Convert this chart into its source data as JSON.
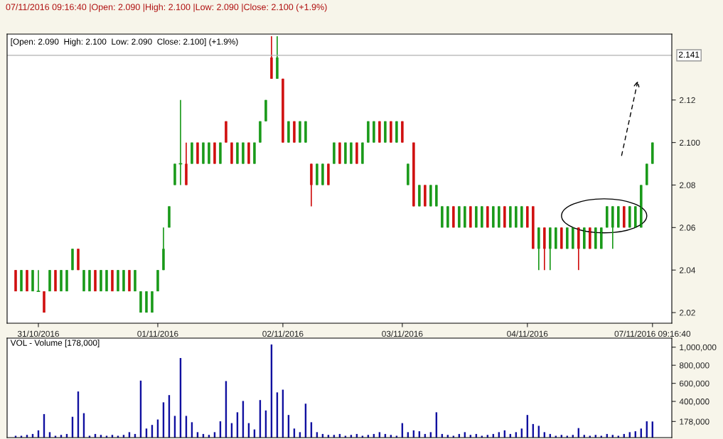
{
  "chart_data": [
    {
      "type": "candlestick",
      "title": "07/11/2016 09:16:40 |Open: 2.090 |High: 2.100 |Low: 2.090 |Close: 2.100 (+1.9%)",
      "subtitle": "[Open: 2.090  High: 2.100  Low: 2.090  Close: 2.100] (+1.9%)",
      "categories": [
        null,
        null,
        null,
        null,
        "31/10/2016",
        null,
        null,
        null,
        null,
        null,
        null,
        null,
        null,
        null,
        null,
        null,
        null,
        null,
        null,
        null,
        null,
        null,
        null,
        null,
        null,
        "01/11/2016",
        null,
        null,
        null,
        null,
        null,
        null,
        null,
        null,
        null,
        null,
        null,
        null,
        null,
        null,
        null,
        null,
        null,
        null,
        null,
        null,
        null,
        "02/11/2016",
        null,
        null,
        null,
        null,
        null,
        null,
        null,
        null,
        null,
        null,
        null,
        null,
        null,
        null,
        null,
        null,
        null,
        null,
        null,
        null,
        "03/11/2016",
        null,
        null,
        null,
        null,
        null,
        null,
        null,
        null,
        null,
        null,
        null,
        null,
        null,
        null,
        null,
        null,
        null,
        null,
        null,
        null,
        null,
        "04/11/2016",
        null,
        null,
        null,
        null,
        null,
        null,
        null,
        null,
        null,
        null,
        null,
        null,
        null,
        null,
        null,
        null,
        null,
        null,
        null,
        null,
        null,
        "07/11/2016 09:16:40"
      ],
      "ohlc": [
        [
          2.04,
          2.04,
          2.03,
          2.03
        ],
        [
          2.03,
          2.04,
          2.03,
          2.04
        ],
        [
          2.04,
          2.04,
          2.03,
          2.03
        ],
        [
          2.03,
          2.04,
          2.03,
          2.04
        ],
        [
          2.03,
          2.04,
          2.03,
          2.03
        ],
        [
          2.03,
          2.03,
          2.02,
          2.02
        ],
        [
          2.03,
          2.04,
          2.03,
          2.04
        ],
        [
          2.04,
          2.04,
          2.03,
          2.03
        ],
        [
          2.03,
          2.04,
          2.03,
          2.04
        ],
        [
          2.03,
          2.04,
          2.03,
          2.04
        ],
        [
          2.04,
          2.05,
          2.04,
          2.05
        ],
        [
          2.05,
          2.05,
          2.04,
          2.04
        ],
        [
          2.03,
          2.04,
          2.03,
          2.04
        ],
        [
          2.03,
          2.04,
          2.03,
          2.04
        ],
        [
          2.04,
          2.04,
          2.03,
          2.03
        ],
        [
          2.03,
          2.04,
          2.03,
          2.04
        ],
        [
          2.03,
          2.04,
          2.03,
          2.04
        ],
        [
          2.04,
          2.04,
          2.03,
          2.03
        ],
        [
          2.03,
          2.04,
          2.03,
          2.04
        ],
        [
          2.03,
          2.04,
          2.03,
          2.04
        ],
        [
          2.04,
          2.04,
          2.03,
          2.03
        ],
        [
          2.03,
          2.04,
          2.03,
          2.04
        ],
        [
          2.02,
          2.03,
          2.02,
          2.03
        ],
        [
          2.02,
          2.03,
          2.02,
          2.03
        ],
        [
          2.02,
          2.03,
          2.02,
          2.03
        ],
        [
          2.03,
          2.04,
          2.03,
          2.04
        ],
        [
          2.04,
          2.06,
          2.04,
          2.05
        ],
        [
          2.06,
          2.07,
          2.06,
          2.07
        ],
        [
          2.08,
          2.09,
          2.08,
          2.09
        ],
        [
          2.09,
          2.12,
          2.08,
          2.09
        ],
        [
          2.09,
          2.1,
          2.08,
          2.08
        ],
        [
          2.09,
          2.1,
          2.09,
          2.1
        ],
        [
          2.1,
          2.1,
          2.09,
          2.09
        ],
        [
          2.09,
          2.1,
          2.09,
          2.1
        ],
        [
          2.09,
          2.1,
          2.09,
          2.1
        ],
        [
          2.1,
          2.1,
          2.09,
          2.09
        ],
        [
          2.09,
          2.1,
          2.09,
          2.1
        ],
        [
          2.11,
          2.11,
          2.1,
          2.1
        ],
        [
          2.1,
          2.1,
          2.09,
          2.09
        ],
        [
          2.09,
          2.1,
          2.09,
          2.1
        ],
        [
          2.09,
          2.1,
          2.09,
          2.1
        ],
        [
          2.1,
          2.1,
          2.09,
          2.09
        ],
        [
          2.09,
          2.1,
          2.09,
          2.1
        ],
        [
          2.1,
          2.11,
          2.1,
          2.11
        ],
        [
          2.11,
          2.12,
          2.11,
          2.12
        ],
        [
          2.14,
          2.15,
          2.13,
          2.13
        ],
        [
          2.13,
          2.15,
          2.13,
          2.14
        ],
        [
          2.13,
          2.13,
          2.1,
          2.1
        ],
        [
          2.1,
          2.11,
          2.1,
          2.11
        ],
        [
          2.11,
          2.11,
          2.1,
          2.1
        ],
        [
          2.1,
          2.11,
          2.1,
          2.11
        ],
        [
          2.1,
          2.11,
          2.1,
          2.11
        ],
        [
          2.09,
          2.09,
          2.07,
          2.08
        ],
        [
          2.08,
          2.09,
          2.08,
          2.09
        ],
        [
          2.08,
          2.09,
          2.08,
          2.09
        ],
        [
          2.09,
          2.09,
          2.08,
          2.08
        ],
        [
          2.09,
          2.1,
          2.09,
          2.1
        ],
        [
          2.1,
          2.1,
          2.09,
          2.09
        ],
        [
          2.09,
          2.1,
          2.09,
          2.1
        ],
        [
          2.09,
          2.1,
          2.09,
          2.1
        ],
        [
          2.1,
          2.1,
          2.09,
          2.09
        ],
        [
          2.09,
          2.1,
          2.09,
          2.1
        ],
        [
          2.1,
          2.11,
          2.1,
          2.11
        ],
        [
          2.1,
          2.11,
          2.1,
          2.11
        ],
        [
          2.11,
          2.11,
          2.1,
          2.1
        ],
        [
          2.1,
          2.11,
          2.1,
          2.11
        ],
        [
          2.11,
          2.11,
          2.1,
          2.1
        ],
        [
          2.1,
          2.11,
          2.1,
          2.11
        ],
        [
          2.11,
          2.11,
          2.1,
          2.1
        ],
        [
          2.08,
          2.09,
          2.08,
          2.09
        ],
        [
          2.1,
          2.1,
          2.07,
          2.07
        ],
        [
          2.07,
          2.08,
          2.07,
          2.08
        ],
        [
          2.08,
          2.08,
          2.07,
          2.07
        ],
        [
          2.07,
          2.08,
          2.07,
          2.08
        ],
        [
          2.07,
          2.08,
          2.07,
          2.08
        ],
        [
          2.06,
          2.07,
          2.06,
          2.07
        ],
        [
          2.06,
          2.07,
          2.06,
          2.07
        ],
        [
          2.07,
          2.07,
          2.06,
          2.06
        ],
        [
          2.06,
          2.07,
          2.06,
          2.07
        ],
        [
          2.06,
          2.07,
          2.06,
          2.07
        ],
        [
          2.07,
          2.07,
          2.06,
          2.06
        ],
        [
          2.06,
          2.07,
          2.06,
          2.07
        ],
        [
          2.06,
          2.07,
          2.06,
          2.07
        ],
        [
          2.07,
          2.07,
          2.06,
          2.06
        ],
        [
          2.06,
          2.07,
          2.06,
          2.07
        ],
        [
          2.06,
          2.07,
          2.06,
          2.07
        ],
        [
          2.07,
          2.07,
          2.06,
          2.06
        ],
        [
          2.06,
          2.07,
          2.06,
          2.07
        ],
        [
          2.06,
          2.07,
          2.06,
          2.07
        ],
        [
          2.06,
          2.07,
          2.06,
          2.07
        ],
        [
          2.07,
          2.07,
          2.06,
          2.06
        ],
        [
          2.07,
          2.07,
          2.05,
          2.05
        ],
        [
          2.05,
          2.06,
          2.04,
          2.06
        ],
        [
          2.06,
          2.06,
          2.04,
          2.05
        ],
        [
          2.05,
          2.06,
          2.04,
          2.06
        ],
        [
          2.05,
          2.06,
          2.05,
          2.06
        ],
        [
          2.06,
          2.06,
          2.05,
          2.05
        ],
        [
          2.05,
          2.06,
          2.05,
          2.06
        ],
        [
          2.05,
          2.06,
          2.05,
          2.06
        ],
        [
          2.06,
          2.06,
          2.04,
          2.05
        ],
        [
          2.05,
          2.06,
          2.05,
          2.06
        ],
        [
          2.06,
          2.06,
          2.05,
          2.05
        ],
        [
          2.05,
          2.06,
          2.05,
          2.06
        ],
        [
          2.05,
          2.06,
          2.05,
          2.06
        ],
        [
          2.06,
          2.07,
          2.06,
          2.07
        ],
        [
          2.06,
          2.07,
          2.05,
          2.07
        ],
        [
          2.06,
          2.07,
          2.06,
          2.07
        ],
        [
          2.07,
          2.07,
          2.06,
          2.06
        ],
        [
          2.06,
          2.07,
          2.06,
          2.07
        ],
        [
          2.06,
          2.07,
          2.06,
          2.07
        ],
        [
          2.06,
          2.08,
          2.06,
          2.08
        ],
        [
          2.08,
          2.09,
          2.08,
          2.09
        ],
        [
          2.09,
          2.1,
          2.09,
          2.1
        ]
      ],
      "colors": [
        "#d01010",
        "#1a9a1a",
        "#d01010",
        "#1a9a1a",
        "#1a9a1a",
        "#d01010",
        "#1a9a1a",
        "#d01010",
        "#1a9a1a",
        "#1a9a1a",
        "#1a9a1a",
        "#d01010",
        "#1a9a1a",
        "#1a9a1a",
        "#d01010",
        "#1a9a1a",
        "#1a9a1a",
        "#d01010",
        "#1a9a1a",
        "#1a9a1a",
        "#d01010",
        "#1a9a1a",
        "#1a9a1a",
        "#1a9a1a",
        "#1a9a1a",
        "#1a9a1a",
        "#1a9a1a",
        "#1a9a1a",
        "#1a9a1a",
        "#1a9a1a",
        "#d01010",
        "#1a9a1a",
        "#d01010",
        "#1a9a1a",
        "#1a9a1a",
        "#d01010",
        "#1a9a1a",
        "#d01010",
        "#d01010",
        "#1a9a1a",
        "#1a9a1a",
        "#d01010",
        "#1a9a1a",
        "#1a9a1a",
        "#1a9a1a",
        "#d01010",
        "#1a9a1a",
        "#d01010",
        "#1a9a1a",
        "#d01010",
        "#1a9a1a",
        "#1a9a1a",
        "#d01010",
        "#1a9a1a",
        "#1a9a1a",
        "#d01010",
        "#1a9a1a",
        "#d01010",
        "#1a9a1a",
        "#1a9a1a",
        "#d01010",
        "#1a9a1a",
        "#1a9a1a",
        "#1a9a1a",
        "#d01010",
        "#1a9a1a",
        "#d01010",
        "#1a9a1a",
        "#d01010",
        "#1a9a1a",
        "#d01010",
        "#1a9a1a",
        "#d01010",
        "#1a9a1a",
        "#1a9a1a",
        "#1a9a1a",
        "#1a9a1a",
        "#d01010",
        "#1a9a1a",
        "#1a9a1a",
        "#d01010",
        "#1a9a1a",
        "#1a9a1a",
        "#d01010",
        "#1a9a1a",
        "#1a9a1a",
        "#d01010",
        "#1a9a1a",
        "#1a9a1a",
        "#1a9a1a",
        "#d01010",
        "#d01010",
        "#1a9a1a",
        "#d01010",
        "#1a9a1a",
        "#1a9a1a",
        "#d01010",
        "#1a9a1a",
        "#1a9a1a",
        "#d01010",
        "#1a9a1a",
        "#d01010",
        "#1a9a1a",
        "#1a9a1a",
        "#1a9a1a",
        "#1a9a1a",
        "#1a9a1a",
        "#d01010",
        "#1a9a1a",
        "#1a9a1a",
        "#1a9a1a",
        "#1a9a1a",
        "#1a9a1a"
      ],
      "ylim": [
        2.015,
        2.151
      ],
      "yticks": [
        2.02,
        2.04,
        2.06,
        2.08,
        {
          "value": 2.1,
          "label": "2.100"
        },
        2.12
      ],
      "ref_lines": [
        {
          "axis": "y",
          "value": 2.141,
          "label": "2.141",
          "color": "#b0b0b0"
        }
      ],
      "grid": false,
      "legend": false
    },
    {
      "type": "bar",
      "title": "VOL - Volume [178,000]",
      "categories": [
        null,
        null,
        null,
        null,
        null,
        null,
        null,
        null,
        null,
        null,
        null,
        null,
        null,
        null,
        null,
        null,
        null,
        null,
        null,
        null,
        null,
        null,
        null,
        null,
        null,
        null,
        null,
        null,
        null,
        null,
        null,
        null,
        null,
        null,
        null,
        null,
        null,
        null,
        null,
        null,
        null,
        null,
        null,
        null,
        null,
        null,
        null,
        null,
        null,
        null,
        null,
        null,
        null,
        null,
        null,
        null,
        null,
        null,
        null,
        null,
        null,
        null,
        null,
        null,
        null,
        null,
        null,
        null,
        null,
        null,
        null,
        null,
        null,
        null,
        null,
        null,
        null,
        null,
        null,
        null,
        null,
        null,
        null,
        null,
        null,
        null,
        null,
        null,
        null,
        null,
        null,
        null,
        null,
        null,
        null,
        null,
        null,
        null,
        null,
        null,
        null,
        null,
        null,
        null,
        null,
        null,
        null,
        null,
        null,
        null,
        null,
        null,
        null
      ],
      "values": [
        20000,
        20000,
        30000,
        40000,
        80000,
        260000,
        60000,
        20000,
        30000,
        40000,
        230000,
        510000,
        270000,
        20000,
        40000,
        30000,
        20000,
        30000,
        20000,
        30000,
        60000,
        40000,
        630000,
        100000,
        140000,
        200000,
        390000,
        470000,
        240000,
        880000,
        240000,
        170000,
        60000,
        40000,
        30000,
        60000,
        180000,
        625000,
        160000,
        280000,
        405000,
        160000,
        90000,
        415000,
        300000,
        1030000,
        500000,
        530000,
        250000,
        100000,
        60000,
        375000,
        170000,
        60000,
        40000,
        30000,
        30000,
        40000,
        20000,
        30000,
        40000,
        20000,
        30000,
        40000,
        60000,
        40000,
        30000,
        20000,
        160000,
        60000,
        80000,
        70000,
        40000,
        60000,
        280000,
        40000,
        30000,
        20000,
        40000,
        60000,
        30000,
        40000,
        20000,
        30000,
        40000,
        60000,
        80000,
        40000,
        60000,
        100000,
        250000,
        150000,
        130000,
        60000,
        40000,
        20000,
        30000,
        20000,
        30000,
        105000,
        30000,
        20000,
        30000,
        20000,
        40000,
        30000,
        20000,
        40000,
        60000,
        70000,
        100000,
        180000,
        178000
      ],
      "color": "#1010a0",
      "ylim": [
        0,
        1100000
      ],
      "yticks": [
        {
          "value": 178000,
          "label": "178,000"
        },
        {
          "value": 400000,
          "label": "400,000"
        },
        {
          "value": 600000,
          "label": "600,000"
        },
        {
          "value": 800000,
          "label": "800,000"
        },
        {
          "value": 1000000,
          "label": "1,000,000"
        }
      ],
      "tick_labels": "y",
      "grid": false,
      "legend": false
    }
  ]
}
